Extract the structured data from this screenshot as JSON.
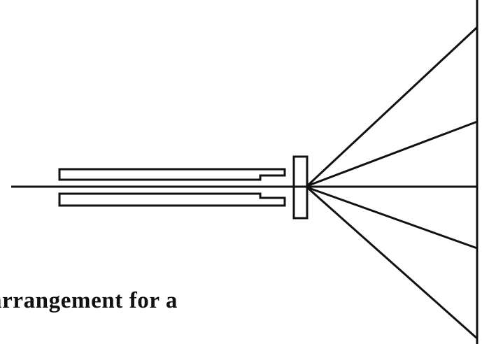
{
  "figure": {
    "caption": "arrangement for a",
    "line_color": "#111111",
    "background_color": "#ffffff"
  }
}
